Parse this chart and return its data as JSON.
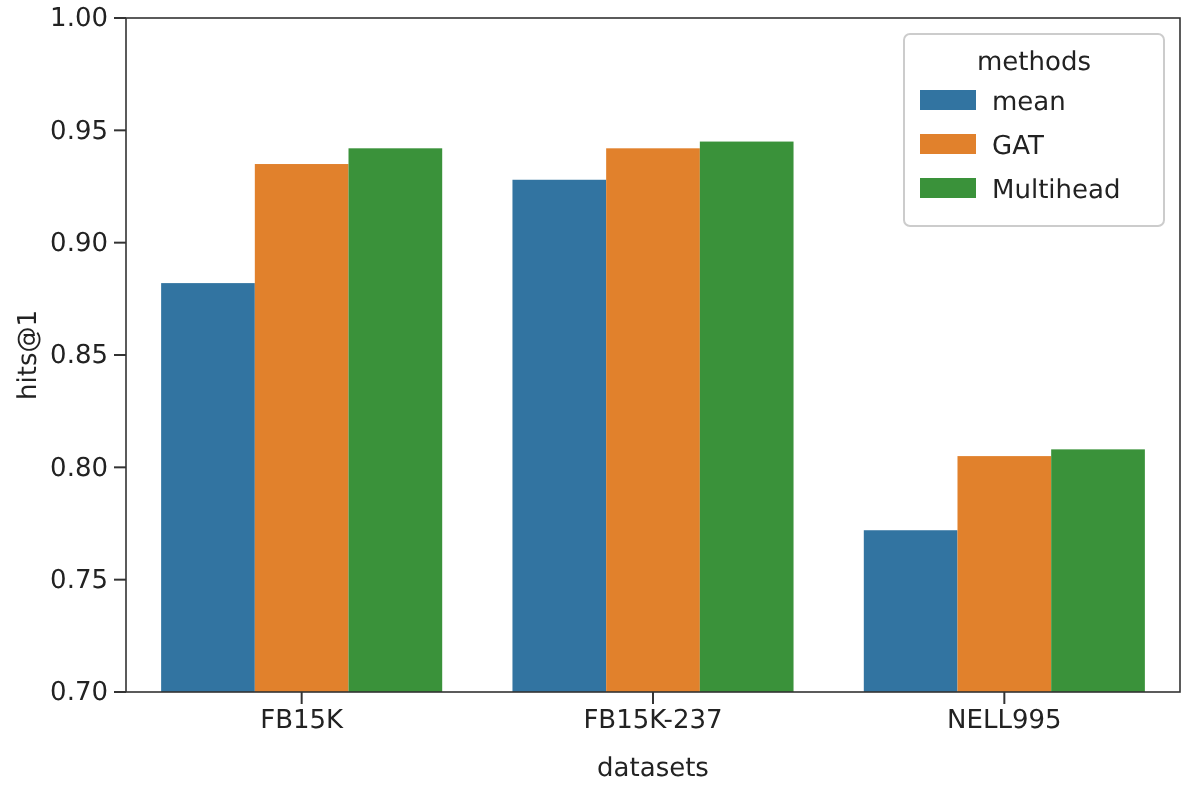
{
  "chart_data": {
    "type": "bar",
    "xlabel": "datasets",
    "ylabel": "hits@1",
    "legend_title": "methods",
    "categories": [
      "FB15K",
      "FB15K-237",
      "NELL995"
    ],
    "series": [
      {
        "name": "mean",
        "color": "#3274a1",
        "values": [
          0.882,
          0.928,
          0.772
        ]
      },
      {
        "name": "GAT",
        "color": "#e1812c",
        "values": [
          0.935,
          0.942,
          0.805
        ]
      },
      {
        "name": "Multihead",
        "color": "#3a923a",
        "values": [
          0.942,
          0.945,
          0.808
        ]
      }
    ],
    "ylim": [
      0.7,
      1.0
    ],
    "yticks": [
      {
        "value": 0.7,
        "label": "0.70"
      },
      {
        "value": 0.75,
        "label": "0.75"
      },
      {
        "value": 0.8,
        "label": "0.80"
      },
      {
        "value": 0.85,
        "label": "0.85"
      },
      {
        "value": 0.9,
        "label": "0.90"
      },
      {
        "value": 0.95,
        "label": "0.95"
      },
      {
        "value": 1.0,
        "label": "1.00"
      }
    ],
    "legend": "top right"
  }
}
